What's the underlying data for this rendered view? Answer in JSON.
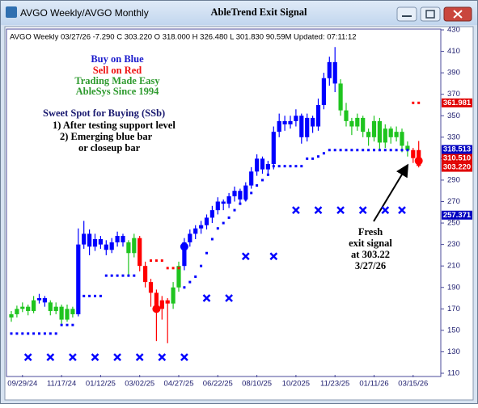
{
  "window": {
    "title_left": "AVGO Weekly/AVGO Monthly",
    "title_center": "AbleTrend Exit Signal"
  },
  "chart_data": {
    "type": "candlestick",
    "info": "AVGO  Weekly 03/27/26  -7.290  C 303.220  O 318.000  H 326.480  L 301.830  90.59M  Updated: 07:11:12",
    "annotations": {
      "buy": "Buy on Blue",
      "sell": "Sell on Red",
      "easy": "Trading Made Easy",
      "since": "AbleSys Since 1994",
      "ssb": "Sweet Spot for Buying (SSb)",
      "ssb1": "1) After testing support level",
      "ssb2": "2) Emerging blue bar",
      "ssb3": "or closeup bar",
      "fresh1": "Fresh",
      "fresh2": "exit signal",
      "fresh3": "at 303.22",
      "fresh4": "3/27/26"
    },
    "categories": [
      null,
      null,
      "09/29/24",
      null,
      null,
      null,
      null,
      null,
      null,
      "11/17/24",
      null,
      null,
      null,
      null,
      null,
      null,
      "01/12/25",
      null,
      null,
      null,
      null,
      null,
      null,
      "03/02/25",
      null,
      null,
      null,
      null,
      null,
      null,
      "04/27/25",
      null,
      null,
      null,
      null,
      null,
      null,
      "06/22/25",
      null,
      null,
      null,
      null,
      null,
      null,
      "08/10/25",
      null,
      null,
      null,
      null,
      null,
      null,
      "10/2025",
      null,
      null,
      null,
      null,
      null,
      null,
      "11/23/25",
      null,
      null,
      null,
      null,
      null,
      null,
      "01/11/26",
      null,
      null,
      null,
      null,
      null,
      null,
      "03/15/26",
      null
    ],
    "ohlc": [
      [
        162,
        168,
        158,
        165
      ],
      [
        165,
        173,
        162,
        170
      ],
      [
        170,
        176,
        167,
        172
      ],
      [
        172,
        174,
        164,
        168
      ],
      [
        168,
        182,
        166,
        178
      ],
      [
        178,
        184,
        175,
        180
      ],
      [
        180,
        182,
        172,
        176
      ],
      [
        176,
        178,
        164,
        168
      ],
      [
        168,
        176,
        165,
        172
      ],
      [
        172,
        174,
        156,
        160
      ],
      [
        160,
        174,
        158,
        170
      ],
      [
        170,
        172,
        162,
        165
      ],
      [
        165,
        245,
        163,
        230
      ],
      [
        230,
        252,
        226,
        240
      ],
      [
        240,
        244,
        220,
        228
      ],
      [
        228,
        240,
        224,
        235
      ],
      [
        235,
        238,
        226,
        230
      ],
      [
        230,
        234,
        220,
        225
      ],
      [
        225,
        236,
        222,
        232
      ],
      [
        232,
        242,
        228,
        238
      ],
      [
        238,
        240,
        228,
        232
      ],
      [
        232,
        234,
        200,
        222
      ],
      [
        222,
        240,
        218,
        236
      ],
      [
        236,
        238,
        205,
        210
      ],
      [
        210,
        214,
        190,
        195
      ],
      [
        195,
        198,
        172,
        185
      ],
      [
        185,
        188,
        140,
        170
      ],
      [
        170,
        182,
        160,
        178
      ],
      [
        178,
        180,
        138,
        175
      ],
      [
        175,
        195,
        170,
        190
      ],
      [
        190,
        214,
        186,
        210
      ],
      [
        210,
        236,
        206,
        232
      ],
      [
        232,
        244,
        228,
        240
      ],
      [
        240,
        248,
        235,
        245
      ],
      [
        245,
        252,
        240,
        248
      ],
      [
        248,
        258,
        244,
        255
      ],
      [
        255,
        266,
        250,
        262
      ],
      [
        262,
        274,
        258,
        270
      ],
      [
        270,
        272,
        262,
        268
      ],
      [
        268,
        278,
        264,
        275
      ],
      [
        275,
        284,
        270,
        280
      ],
      [
        280,
        282,
        268,
        272
      ],
      [
        272,
        288,
        270,
        285
      ],
      [
        285,
        302,
        282,
        298
      ],
      [
        298,
        314,
        294,
        310
      ],
      [
        310,
        312,
        296,
        300
      ],
      [
        300,
        308,
        296,
        305
      ],
      [
        305,
        340,
        300,
        335
      ],
      [
        335,
        352,
        330,
        345
      ],
      [
        345,
        350,
        336,
        342
      ],
      [
        342,
        350,
        338,
        345
      ],
      [
        345,
        356,
        340,
        350
      ],
      [
        350,
        352,
        324,
        330
      ],
      [
        330,
        352,
        326,
        348
      ],
      [
        348,
        350,
        334,
        340
      ],
      [
        340,
        366,
        336,
        360
      ],
      [
        360,
        390,
        356,
        385
      ],
      [
        385,
        405,
        378,
        400
      ],
      [
        400,
        414,
        372,
        380
      ],
      [
        380,
        384,
        350,
        355
      ],
      [
        355,
        362,
        340,
        345
      ],
      [
        345,
        348,
        332,
        340
      ],
      [
        340,
        352,
        336,
        348
      ],
      [
        348,
        350,
        330,
        335
      ],
      [
        335,
        338,
        322,
        330
      ],
      [
        330,
        350,
        326,
        345
      ],
      [
        345,
        348,
        318,
        325
      ],
      [
        325,
        342,
        320,
        338
      ],
      [
        338,
        340,
        324,
        330
      ],
      [
        330,
        340,
        326,
        335
      ],
      [
        335,
        338,
        316,
        322
      ],
      [
        322,
        326,
        312,
        318
      ],
      [
        318,
        320,
        306,
        310.51
      ],
      [
        318,
        326.48,
        301.83,
        303.22
      ]
    ],
    "bar_colors": [
      "#1fc41f",
      "#1fc41f",
      "#1fc41f",
      "#1fc41f",
      "#1fc41f",
      "#0000ff",
      "#0000ff",
      "#1fc41f",
      "#1fc41f",
      "#1fc41f",
      "#1fc41f",
      "#1fc41f",
      "#0000ff",
      "#0000ff",
      "#0000ff",
      "#0000ff",
      "#0000ff",
      "#0000ff",
      "#0000ff",
      "#0000ff",
      "#0000ff",
      "#1fc41f",
      "#1fc41f",
      "#ff0000",
      "#ff0000",
      "#ff0000",
      "#ff0000",
      "#ff0000",
      "#ff0000",
      "#1fc41f",
      "#1fc41f",
      "#0000ff",
      "#0000ff",
      "#0000ff",
      "#0000ff",
      "#0000ff",
      "#0000ff",
      "#0000ff",
      "#0000ff",
      "#0000ff",
      "#0000ff",
      "#0000ff",
      "#0000ff",
      "#0000ff",
      "#0000ff",
      "#0000ff",
      "#0000ff",
      "#0000ff",
      "#0000ff",
      "#0000ff",
      "#0000ff",
      "#0000ff",
      "#0000ff",
      "#0000ff",
      "#0000ff",
      "#0000ff",
      "#0000ff",
      "#0000ff",
      "#0000ff",
      "#1fc41f",
      "#1fc41f",
      "#1fc41f",
      "#1fc41f",
      "#1fc41f",
      "#1fc41f",
      "#1fc41f",
      "#1fc41f",
      "#1fc41f",
      "#1fc41f",
      "#1fc41f",
      "#1fc41f",
      "#1fc41f",
      "#ff0000",
      "#ff0000"
    ],
    "buy_stop": {
      "color": "#0000ff",
      "values": [
        147,
        147,
        147,
        147,
        147,
        147,
        147,
        147,
        147,
        155,
        155,
        155,
        182,
        182,
        182,
        182,
        182,
        201,
        201,
        201,
        201,
        201,
        201,
        null,
        null,
        null,
        null,
        null,
        null,
        null,
        null,
        190,
        195,
        200,
        210,
        222,
        235,
        245,
        250,
        255,
        262,
        268,
        272,
        278,
        285,
        290,
        295,
        303,
        303,
        303,
        303,
        303,
        303,
        310,
        310,
        312,
        315,
        318,
        318,
        318,
        318,
        318,
        318,
        318,
        318,
        318,
        318,
        318,
        318,
        318,
        318,
        318,
        null,
        null
      ]
    },
    "sell_stop": {
      "color": "#ff0000",
      "values": [
        null,
        null,
        null,
        null,
        null,
        null,
        null,
        null,
        null,
        null,
        null,
        null,
        null,
        null,
        null,
        null,
        null,
        null,
        null,
        null,
        null,
        null,
        null,
        null,
        null,
        215,
        215,
        215,
        208,
        208,
        208,
        null,
        null,
        null,
        null,
        null,
        null,
        null,
        null,
        null,
        null,
        null,
        null,
        null,
        null,
        null,
        null,
        null,
        null,
        null,
        null,
        null,
        null,
        null,
        null,
        null,
        null,
        null,
        null,
        null,
        null,
        null,
        null,
        null,
        null,
        null,
        null,
        null,
        null,
        null,
        null,
        null,
        362,
        362
      ]
    },
    "x_marks": {
      "color": "#0000ff",
      "points": [
        {
          "bar": 3,
          "value": 125
        },
        {
          "bar": 7,
          "value": 125
        },
        {
          "bar": 11,
          "value": 125
        },
        {
          "bar": 15,
          "value": 125
        },
        {
          "bar": 19,
          "value": 125
        },
        {
          "bar": 23,
          "value": 125
        },
        {
          "bar": 27,
          "value": 125
        },
        {
          "bar": 31,
          "value": 125
        },
        {
          "bar": 35,
          "value": 180
        },
        {
          "bar": 39,
          "value": 180
        },
        {
          "bar": 42,
          "value": 219
        },
        {
          "bar": 47,
          "value": 219
        },
        {
          "bar": 51,
          "value": 262
        },
        {
          "bar": 55,
          "value": 262
        },
        {
          "bar": 59,
          "value": 262
        },
        {
          "bar": 63,
          "value": 262
        },
        {
          "bar": 67,
          "value": 262
        },
        {
          "bar": 70,
          "value": 262
        }
      ]
    },
    "signal_dots": [
      {
        "bar": 31,
        "value": 228,
        "color": "#0000ff"
      },
      {
        "bar": 26,
        "value": 170,
        "color": "#ff0000"
      },
      {
        "bar": 73,
        "value": 308,
        "color": "#ff0000"
      }
    ],
    "price_tags": {
      "values": [
        361.981,
        318.513,
        310.51,
        303.22,
        257.371
      ],
      "value_labels": [
        "361.981",
        "318.513",
        "310.510",
        "303.220",
        "257.371"
      ],
      "colors": [
        "#e00000",
        "#0000c0",
        "#e00000",
        "#e00000",
        "#0000c0"
      ]
    },
    "ylim": [
      110,
      430
    ],
    "yticks": [
      110,
      130,
      150,
      170,
      190,
      210,
      230,
      250,
      270,
      290,
      310,
      330,
      350,
      370,
      390,
      410,
      430
    ]
  }
}
